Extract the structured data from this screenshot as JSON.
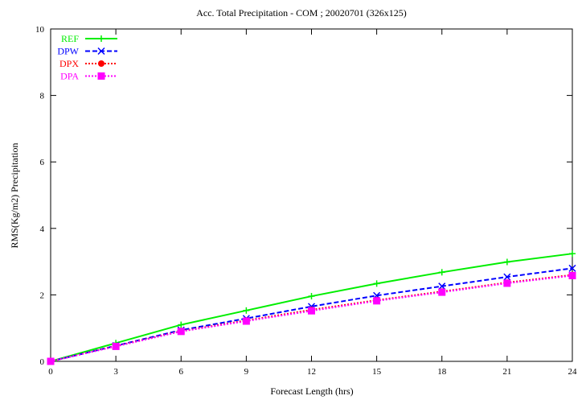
{
  "chart_data": {
    "type": "line",
    "title": "Acc. Total Precipitation - COM ; 20020701 (326x125)",
    "xlabel": "Forecast Length (hrs)",
    "ylabel": "RMS(Kg/m2) Precipitation",
    "xlim": [
      0,
      24
    ],
    "ylim": [
      0,
      10
    ],
    "x_ticks": [
      "0",
      "3",
      "6",
      "9",
      "12",
      "15",
      "18",
      "21",
      "24"
    ],
    "y_ticks": [
      "0",
      "2",
      "4",
      "6",
      "8",
      "10"
    ],
    "grid": false,
    "legend_position": "top-left",
    "x": [
      0,
      3,
      6,
      9,
      12,
      15,
      18,
      21,
      24
    ],
    "series": [
      {
        "name": "REF",
        "color": "#00ee00",
        "marker": "plus",
        "dash": "solid",
        "values": [
          0.0,
          0.55,
          1.1,
          1.53,
          1.96,
          2.34,
          2.68,
          2.99,
          3.24
        ]
      },
      {
        "name": "DPW",
        "color": "#0000ff",
        "marker": "cross",
        "dash": "dashed",
        "values": [
          0.0,
          0.47,
          0.94,
          1.29,
          1.65,
          1.98,
          2.26,
          2.54,
          2.8
        ]
      },
      {
        "name": "DPX",
        "color": "#ff0000",
        "marker": "circle",
        "dash": "dotted",
        "values": [
          0.0,
          0.46,
          0.91,
          1.23,
          1.55,
          1.84,
          2.1,
          2.37,
          2.6
        ]
      },
      {
        "name": "DPA",
        "color": "#ff00ff",
        "marker": "square",
        "dash": "dotted",
        "values": [
          0.0,
          0.45,
          0.9,
          1.21,
          1.52,
          1.82,
          2.08,
          2.35,
          2.58
        ]
      }
    ]
  }
}
